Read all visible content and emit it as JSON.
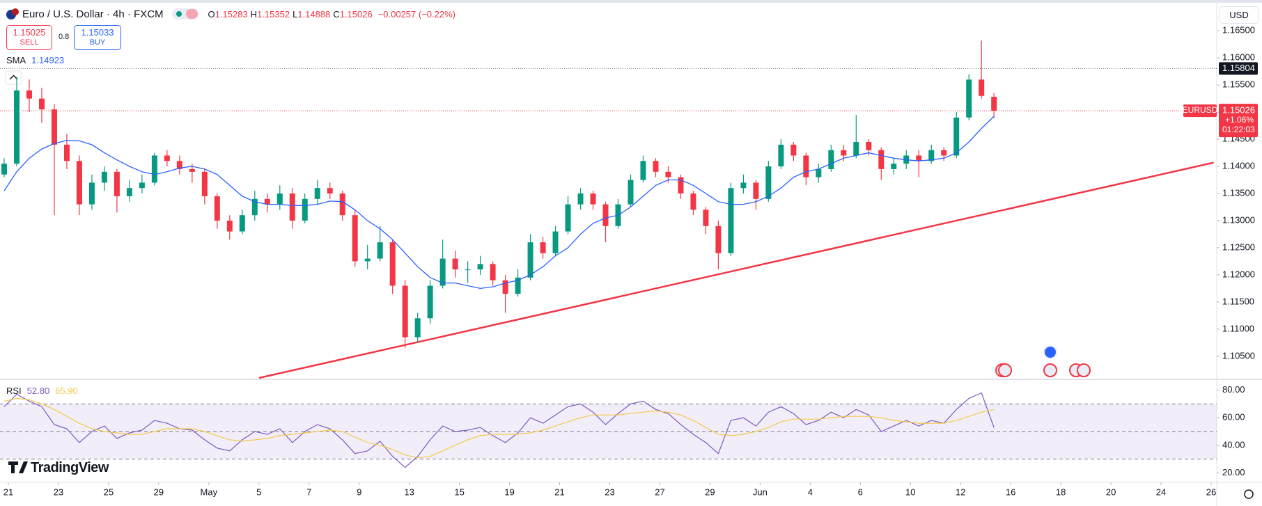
{
  "header": {
    "symbol": "Euro / U.S. Dollar · 4h · FXCM",
    "ohlc_labels": [
      "O",
      "H",
      "L",
      "C"
    ],
    "change": "−0.00257 (−0.22%)",
    "sell": {
      "price": "1.15025",
      "label": "SELL"
    },
    "spread": "0.8",
    "buy": {
      "price": "1.15033",
      "label": "BUY"
    },
    "currency": "USD",
    "brand": "TradingView"
  },
  "chart_data": [
    {
      "type": "candlestick",
      "symbol": "EURUSD",
      "up_color": "#089981",
      "down_color": "#f23645",
      "x": [
        1,
        4,
        7,
        10,
        13,
        16,
        19,
        22,
        25,
        28,
        31,
        34,
        37,
        40,
        43,
        46,
        49,
        52,
        55,
        58,
        61,
        64,
        67,
        70,
        73,
        76,
        79,
        82,
        85,
        88,
        91,
        94,
        97,
        100,
        103,
        106,
        109,
        112,
        115,
        118,
        121,
        124,
        127,
        130,
        133,
        136,
        139,
        142,
        145,
        148,
        151,
        154,
        157,
        160,
        163,
        166,
        169,
        172,
        175,
        178,
        181,
        184,
        187,
        190,
        193,
        196,
        199,
        202,
        205,
        208,
        211,
        214,
        217,
        220,
        223,
        226,
        229,
        232,
        235,
        238
      ],
      "open": [
        1.1385,
        1.1405,
        1.154,
        1.1525,
        1.1505,
        1.144,
        1.141,
        1.133,
        1.137,
        1.139,
        1.1345,
        1.136,
        1.137,
        1.142,
        1.141,
        1.1395,
        1.139,
        1.1345,
        1.13,
        1.128,
        1.131,
        1.134,
        1.133,
        1.135,
        1.13,
        1.134,
        1.136,
        1.135,
        1.131,
        1.1225,
        1.123,
        1.126,
        1.118,
        1.1085,
        1.112,
        1.118,
        1.123,
        1.121,
        1.121,
        1.122,
        1.119,
        1.1165,
        1.1195,
        1.126,
        1.124,
        1.128,
        1.133,
        1.135,
        1.133,
        1.129,
        1.133,
        1.1375,
        1.141,
        1.139,
        1.138,
        1.135,
        1.132,
        1.129,
        1.124,
        1.136,
        1.137,
        1.134,
        1.14,
        1.144,
        1.142,
        1.138,
        1.1395,
        1.143,
        1.142,
        1.1445,
        1.143,
        1.1395,
        1.1405,
        1.142,
        1.141,
        1.143,
        1.142,
        1.149,
        1.156,
        1.15283
      ],
      "high": [
        1.1415,
        1.1565,
        1.156,
        1.1545,
        1.1515,
        1.146,
        1.142,
        1.1385,
        1.14,
        1.1395,
        1.1375,
        1.1385,
        1.1425,
        1.143,
        1.142,
        1.1405,
        1.1395,
        1.135,
        1.131,
        1.132,
        1.1355,
        1.135,
        1.1365,
        1.136,
        1.135,
        1.1375,
        1.137,
        1.1355,
        1.132,
        1.1255,
        1.129,
        1.1265,
        1.119,
        1.113,
        1.119,
        1.1265,
        1.1245,
        1.1225,
        1.1235,
        1.1225,
        1.12,
        1.121,
        1.1275,
        1.127,
        1.129,
        1.1345,
        1.136,
        1.1355,
        1.1335,
        1.134,
        1.1385,
        1.142,
        1.1415,
        1.14,
        1.1385,
        1.1355,
        1.1325,
        1.13,
        1.137,
        1.1385,
        1.1375,
        1.141,
        1.145,
        1.1445,
        1.1425,
        1.1405,
        1.144,
        1.144,
        1.1495,
        1.145,
        1.1435,
        1.1415,
        1.143,
        1.143,
        1.144,
        1.1435,
        1.15,
        1.157,
        1.1632,
        1.15352
      ],
      "low": [
        1.138,
        1.14,
        1.15,
        1.148,
        1.131,
        1.1395,
        1.131,
        1.132,
        1.1355,
        1.1315,
        1.1335,
        1.135,
        1.1365,
        1.14,
        1.1385,
        1.137,
        1.133,
        1.1285,
        1.1265,
        1.1275,
        1.13,
        1.1315,
        1.132,
        1.1285,
        1.1295,
        1.133,
        1.134,
        1.13,
        1.1215,
        1.121,
        1.1225,
        1.1165,
        1.1065,
        1.1075,
        1.111,
        1.1175,
        1.1195,
        1.1185,
        1.12,
        1.118,
        1.113,
        1.116,
        1.119,
        1.123,
        1.1235,
        1.1275,
        1.132,
        1.132,
        1.126,
        1.1285,
        1.1325,
        1.137,
        1.138,
        1.137,
        1.134,
        1.131,
        1.1275,
        1.121,
        1.1235,
        1.135,
        1.132,
        1.1335,
        1.1395,
        1.141,
        1.1365,
        1.137,
        1.139,
        1.141,
        1.1415,
        1.142,
        1.1375,
        1.1385,
        1.1395,
        1.138,
        1.1405,
        1.141,
        1.1415,
        1.1485,
        1.1525,
        1.14888
      ],
      "close": [
        1.1405,
        1.154,
        1.1525,
        1.1505,
        1.144,
        1.141,
        1.133,
        1.137,
        1.139,
        1.1345,
        1.136,
        1.137,
        1.142,
        1.141,
        1.1395,
        1.139,
        1.1345,
        1.13,
        1.128,
        1.131,
        1.134,
        1.133,
        1.135,
        1.13,
        1.134,
        1.136,
        1.135,
        1.131,
        1.1225,
        1.123,
        1.126,
        1.118,
        1.1085,
        1.112,
        1.118,
        1.123,
        1.121,
        1.121,
        1.122,
        1.119,
        1.1165,
        1.1195,
        1.126,
        1.124,
        1.128,
        1.133,
        1.135,
        1.133,
        1.129,
        1.133,
        1.1375,
        1.141,
        1.139,
        1.138,
        1.135,
        1.132,
        1.129,
        1.124,
        1.136,
        1.137,
        1.134,
        1.14,
        1.144,
        1.142,
        1.138,
        1.1395,
        1.143,
        1.142,
        1.1445,
        1.143,
        1.1395,
        1.1405,
        1.142,
        1.141,
        1.143,
        1.142,
        1.149,
        1.156,
        1.153,
        1.15026
      ],
      "indicator": {
        "name": "SMA",
        "color": "#2962ff",
        "values": [
          1.1355,
          1.139,
          1.1415,
          1.1432,
          1.1442,
          1.1448,
          1.1447,
          1.144,
          1.1425,
          1.1412,
          1.14,
          1.139,
          1.1385,
          1.139,
          1.1397,
          1.14,
          1.1395,
          1.1385,
          1.1365,
          1.1345,
          1.1335,
          1.133,
          1.133,
          1.1328,
          1.1328,
          1.133,
          1.1336,
          1.1335,
          1.132,
          1.13,
          1.1285,
          1.1265,
          1.124,
          1.1215,
          1.1195,
          1.1185,
          1.1185,
          1.118,
          1.1175,
          1.1178,
          1.1185,
          1.119,
          1.12,
          1.1215,
          1.1235,
          1.125,
          1.1275,
          1.1295,
          1.1305,
          1.131,
          1.1325,
          1.1345,
          1.1365,
          1.1375,
          1.1375,
          1.1365,
          1.135,
          1.1335,
          1.133,
          1.133,
          1.1335,
          1.1345,
          1.136,
          1.138,
          1.139,
          1.1395,
          1.1405,
          1.1415,
          1.142,
          1.1425,
          1.142,
          1.1415,
          1.1412,
          1.141,
          1.1412,
          1.1415,
          1.1425,
          1.1445,
          1.147,
          1.14923
        ]
      },
      "trendline": {
        "color": "#f23645",
        "x": [
          62,
          290.6
        ],
        "values": [
          1.101,
          1.1407
        ]
      },
      "level": {
        "value": 1.15804,
        "color": "#787b86"
      },
      "last_price": {
        "change": "+1.06%",
        "countdown": "01:22:03"
      },
      "xlim": [
        0,
        291
      ],
      "xticks": [
        {
          "value": 2,
          "label": "21"
        },
        {
          "value": 14,
          "label": "23"
        },
        {
          "value": 26,
          "label": "25"
        },
        {
          "value": 38,
          "label": "29"
        },
        {
          "value": 50,
          "label": "May"
        },
        {
          "value": 62,
          "label": "5"
        },
        {
          "value": 74,
          "label": "7"
        },
        {
          "value": 86,
          "label": "9"
        },
        {
          "value": 98,
          "label": "13"
        },
        {
          "value": 110,
          "label": "15"
        },
        {
          "value": 122,
          "label": "19"
        },
        {
          "value": 134,
          "label": "21"
        },
        {
          "value": 146,
          "label": "23"
        },
        {
          "value": 158,
          "label": "27"
        },
        {
          "value": 170,
          "label": "29"
        },
        {
          "value": 182,
          "label": "Jun"
        },
        {
          "value": 194,
          "label": "4"
        },
        {
          "value": 206,
          "label": "6"
        },
        {
          "value": 218,
          "label": "10"
        },
        {
          "value": 230,
          "label": "12"
        },
        {
          "value": 242,
          "label": "16"
        },
        {
          "value": 254,
          "label": "18"
        },
        {
          "value": 266,
          "label": "20"
        },
        {
          "value": 278,
          "label": "24"
        },
        {
          "value": 290,
          "label": "26"
        }
      ],
      "ylim": [
        1.101,
        1.1699
      ],
      "yticks": [
        {
          "value": 1.105,
          "label": "1.10500"
        },
        {
          "value": 1.11,
          "label": "1.11000"
        },
        {
          "value": 1.115,
          "label": "1.11500"
        },
        {
          "value": 1.12,
          "label": "1.12000"
        },
        {
          "value": 1.125,
          "label": "1.12500"
        },
        {
          "value": 1.13,
          "label": "1.13000"
        },
        {
          "value": 1.135,
          "label": "1.13500"
        },
        {
          "value": 1.14,
          "label": "1.14000"
        },
        {
          "value": 1.145,
          "label": "1.14500"
        },
        {
          "value": 1.15,
          "label": "1.15000"
        },
        {
          "value": 1.155,
          "label": "1.15500"
        },
        {
          "value": 1.16,
          "label": "1.16000"
        },
        {
          "value": 1.165,
          "label": "1.16500"
        }
      ]
    },
    {
      "type": "line",
      "fill_color": "#7e57c2",
      "x": [
        1,
        4,
        7,
        10,
        13,
        16,
        19,
        22,
        25,
        28,
        31,
        34,
        37,
        40,
        43,
        46,
        49,
        52,
        55,
        58,
        61,
        64,
        67,
        70,
        73,
        76,
        79,
        82,
        85,
        88,
        91,
        94,
        97,
        100,
        103,
        106,
        109,
        112,
        115,
        118,
        121,
        124,
        127,
        130,
        133,
        136,
        139,
        142,
        145,
        148,
        151,
        154,
        157,
        160,
        163,
        166,
        169,
        172,
        175,
        178,
        181,
        184,
        187,
        190,
        193,
        196,
        199,
        202,
        205,
        208,
        211,
        214,
        217,
        220,
        223,
        226,
        229,
        232,
        235,
        238
      ],
      "series": [
        {
          "name": "RSI",
          "color": "#7e57c2",
          "value_label": "52.80",
          "values": [
            68,
            77,
            72,
            68,
            55,
            52,
            42,
            50,
            54,
            45,
            49,
            51,
            58,
            56,
            52,
            51,
            44,
            38,
            36,
            44,
            50,
            48,
            52,
            42,
            50,
            55,
            52,
            44,
            34,
            36,
            43,
            32,
            24,
            32,
            44,
            54,
            50,
            51,
            53,
            47,
            42,
            49,
            60,
            56,
            62,
            68,
            70,
            64,
            55,
            63,
            70,
            72,
            66,
            63,
            55,
            48,
            42,
            34,
            58,
            60,
            54,
            64,
            68,
            63,
            55,
            58,
            64,
            60,
            66,
            62,
            50,
            54,
            58,
            54,
            58,
            56,
            66,
            74,
            78,
            52.8
          ]
        },
        {
          "color": "#f2c94c",
          "value_label": "65.90",
          "values": [
            72,
            74,
            73,
            70,
            66,
            61,
            56,
            52,
            50,
            49,
            48,
            48,
            50,
            52,
            52,
            52,
            50,
            47,
            44,
            43,
            44,
            45,
            47,
            48,
            49,
            50,
            51,
            50,
            46,
            42,
            40,
            37,
            33,
            31,
            32,
            36,
            40,
            44,
            47,
            48,
            48,
            48,
            49,
            51,
            54,
            57,
            60,
            62,
            62,
            62,
            63,
            64,
            65,
            64,
            62,
            58,
            53,
            48,
            47,
            48,
            50,
            53,
            57,
            59,
            59,
            59,
            60,
            61,
            61,
            61,
            60,
            58,
            57,
            56,
            56,
            56,
            58,
            61,
            64,
            65.9
          ]
        }
      ],
      "levels": [
        70,
        50,
        30
      ],
      "xlim": [
        0,
        291
      ],
      "ylim": [
        14.2,
        85.8
      ],
      "yticks": [
        {
          "value": 80,
          "label": "80.00"
        },
        {
          "value": 60,
          "label": "60.00"
        },
        {
          "value": 40,
          "label": "40.00"
        },
        {
          "value": 20,
          "label": "20.00"
        }
      ]
    }
  ]
}
